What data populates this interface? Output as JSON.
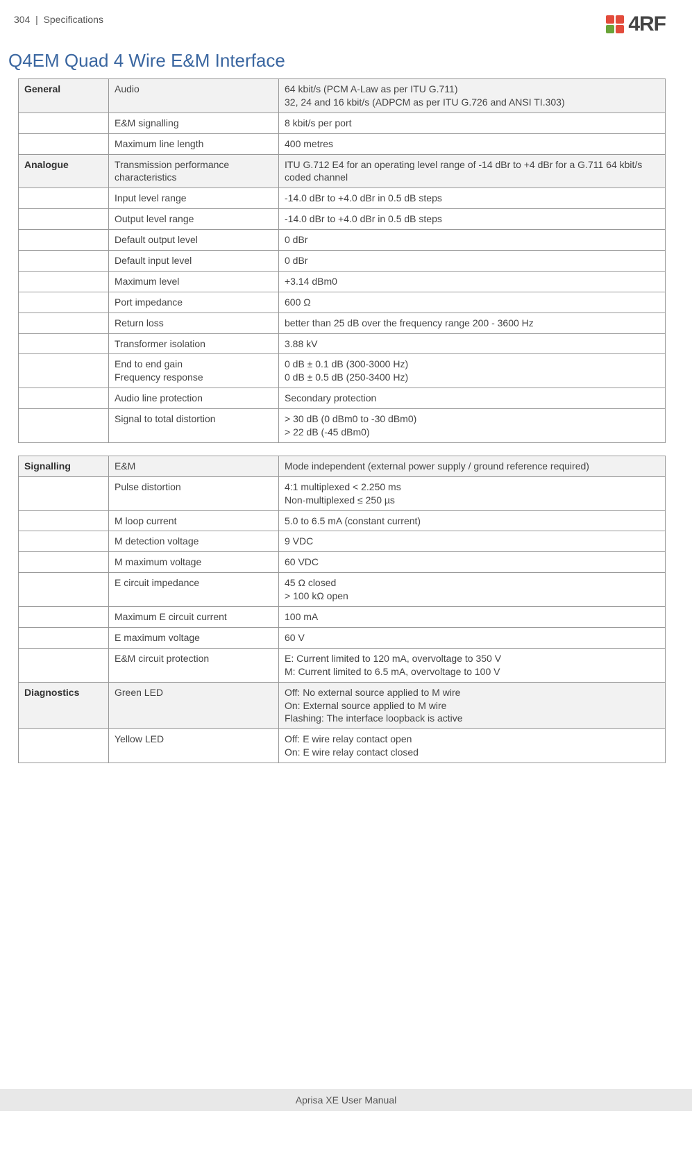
{
  "header": {
    "page_number": "304",
    "separator": "|",
    "section": "Specifications",
    "logo_text": "4RF",
    "logo_colors": {
      "tl": "#e24b3b",
      "tr": "#e24b3b",
      "bl": "#6aa338",
      "br": "#e24b3b"
    }
  },
  "title": "Q4EM Quad 4 Wire E&M Interface",
  "table1": {
    "rows": [
      {
        "shade": true,
        "cat": "General",
        "param": "Audio",
        "val": "64 kbit/s (PCM A-Law as per ITU G.711)\n32, 24 and 16 kbit/s (ADPCM as per ITU G.726 and ANSI TI.303)"
      },
      {
        "shade": false,
        "cat": "",
        "param": "E&M signalling",
        "val": "8 kbit/s per port"
      },
      {
        "shade": false,
        "cat": "",
        "param": "Maximum line length",
        "val": "400 metres"
      },
      {
        "shade": true,
        "cat": "Analogue",
        "param": "Transmission performance characteristics",
        "val": "ITU G.712 E4 for an operating level range of -14 dBr to +4 dBr for a G.711 64 kbit/s coded channel"
      },
      {
        "shade": false,
        "cat": "",
        "param": "Input level range",
        "val": "-14.0 dBr to +4.0 dBr in 0.5 dB steps"
      },
      {
        "shade": false,
        "cat": "",
        "param": "Output level range",
        "val": "-14.0 dBr to +4.0 dBr in 0.5 dB steps"
      },
      {
        "shade": false,
        "cat": "",
        "param": "Default output level",
        "val": "0 dBr"
      },
      {
        "shade": false,
        "cat": "",
        "param": "Default input level",
        "val": "0 dBr"
      },
      {
        "shade": false,
        "cat": "",
        "param": "Maximum level",
        "val": "+3.14 dBm0"
      },
      {
        "shade": false,
        "cat": "",
        "param": "Port impedance",
        "val": "600 Ω"
      },
      {
        "shade": false,
        "cat": "",
        "param": "Return loss",
        "val": "better than 25 dB over the frequency range 200 - 3600 Hz"
      },
      {
        "shade": false,
        "cat": "",
        "param": "Transformer isolation",
        "val": "3.88 kV"
      },
      {
        "shade": false,
        "cat": "",
        "param": "End to end gain\nFrequency response",
        "val": "0 dB ± 0.1 dB (300-3000 Hz)\n0 dB ± 0.5 dB (250-3400 Hz)"
      },
      {
        "shade": false,
        "cat": "",
        "param": "Audio line protection",
        "val": "Secondary protection"
      },
      {
        "shade": false,
        "cat": "",
        "param": "Signal to total distortion",
        "val": "> 30 dB (0 dBm0 to -30 dBm0)\n> 22 dB (-45 dBm0)"
      }
    ]
  },
  "table2": {
    "rows": [
      {
        "shade": true,
        "cat": "Signalling",
        "param": "E&M",
        "val": "Mode independent (external power supply / ground reference required)"
      },
      {
        "shade": false,
        "cat": "",
        "param": "Pulse distortion",
        "val": "4:1 multiplexed < 2.250 ms\nNon-multiplexed ≤ 250 µs"
      },
      {
        "shade": false,
        "cat": "",
        "param": "M loop current",
        "val": "5.0 to 6.5 mA (constant current)"
      },
      {
        "shade": false,
        "cat": "",
        "param": "M detection voltage",
        "val": "9 VDC"
      },
      {
        "shade": false,
        "cat": "",
        "param": "M maximum voltage",
        "val": "60 VDC"
      },
      {
        "shade": false,
        "cat": "",
        "param": "E circuit impedance",
        "val": "45 Ω closed\n> 100 kΩ open"
      },
      {
        "shade": false,
        "cat": "",
        "param": "Maximum E circuit current",
        "val": "100 mA"
      },
      {
        "shade": false,
        "cat": "",
        "param": "E maximum voltage",
        "val": "60 V"
      },
      {
        "shade": false,
        "cat": "",
        "param": "E&M circuit protection",
        "val": "E: Current limited to 120 mA, overvoltage to 350 V\nM: Current limited to 6.5 mA, overvoltage to 100 V"
      },
      {
        "shade": true,
        "cat": "Diagnostics",
        "param": "Green LED",
        "val": "Off: No external source applied to M wire\nOn: External source applied to M wire\nFlashing: The interface loopback is active"
      },
      {
        "shade": false,
        "cat": "",
        "param": "Yellow LED",
        "val": "Off: E wire relay contact open\nOn: E wire relay contact closed"
      }
    ]
  },
  "footer": "Aprisa XE User Manual"
}
